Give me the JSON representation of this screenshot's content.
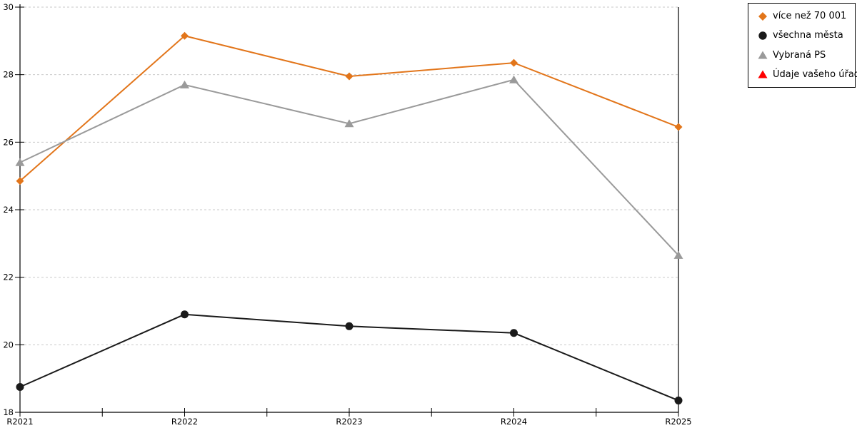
{
  "chart_data": {
    "type": "line",
    "title": "",
    "xlabel": "",
    "ylabel": "",
    "categories": [
      "R2021",
      "R2022",
      "R2023",
      "R2024",
      "R2025"
    ],
    "ylim": [
      18,
      30
    ],
    "ytick_step": 2,
    "yticks": [
      18,
      20,
      22,
      24,
      26,
      28,
      30
    ],
    "grid": "horizontal-dashed",
    "legend_position": "top-right",
    "colors": {
      "gridline": "#c9c9c9",
      "axis": "#000000"
    },
    "series": [
      {
        "name": "více než 70 001",
        "color": "#e2751a",
        "marker": "diamond",
        "values": [
          24.85,
          29.15,
          27.95,
          28.35,
          26.45
        ]
      },
      {
        "name": "všechna města",
        "color": "#1a1a1a",
        "marker": "circle",
        "values": [
          18.75,
          20.9,
          20.55,
          20.35,
          18.35
        ]
      },
      {
        "name": "Vybraná PS",
        "color": "#9a9a9a",
        "marker": "triangle",
        "values": [
          25.4,
          27.7,
          26.55,
          27.85,
          22.65
        ]
      },
      {
        "name": "Údaje vašeho úřadu",
        "color": "#ff0000",
        "marker": "triangle",
        "values": []
      }
    ]
  }
}
